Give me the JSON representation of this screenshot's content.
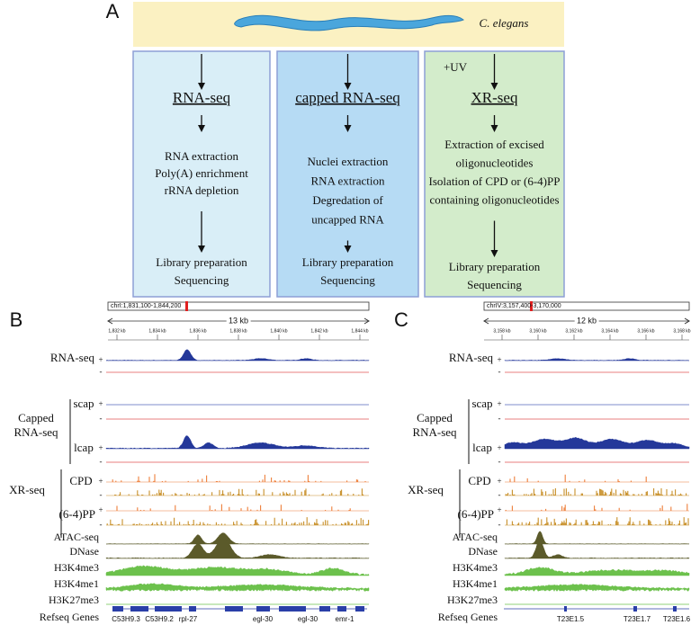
{
  "panel_a": {
    "label": "A",
    "organism": "C. elegans",
    "boxes": [
      {
        "title": "RNA-seq",
        "steps": [
          "RNA extraction",
          "Poly(A) enrichment",
          "rRNA depletion"
        ],
        "final": [
          "Library preparation",
          "Sequencing"
        ]
      },
      {
        "title": "capped RNA-seq",
        "steps": [
          "Nuclei extraction",
          "RNA extraction",
          "Degredation of",
          "uncapped RNA"
        ],
        "final": [
          "Library preparation",
          "Sequencing"
        ]
      },
      {
        "title": "XR-seq",
        "treatment": "+UV",
        "steps": [
          "Extraction of excised",
          "oligonucleotides",
          "Isolation of CPD or (6-4)PP",
          "containing oligonucleotides"
        ],
        "final": [
          "Library preparation",
          "Sequencing"
        ]
      }
    ]
  },
  "strands": [
    "+",
    "-"
  ],
  "track_labels": {
    "rna_seq": "RNA-seq",
    "capped": [
      "Capped",
      "RNA-seq"
    ],
    "scap": "scap",
    "lcap": "lcap",
    "xr_seq": "XR-seq",
    "cpd": "CPD",
    "pp64": "(6-4)PP",
    "atac": "ATAC-seq",
    "dnase": "DNase",
    "h3k4me3": "H3K4me3",
    "h3k4me1": "H3K4me1",
    "h3k27me3": "H3K27me3",
    "genes": "Refseq Genes"
  },
  "panel_b": {
    "label": "B",
    "locus": "chrI:1,831,100-1,844,200",
    "scale": "13 kb",
    "ruler": [
      "1,832 kb",
      "1,834 kb",
      "1,836 kb",
      "1,838 kb",
      "1,840 kb",
      "1,842 kb",
      "1,844 kb"
    ],
    "genes": [
      "C53H9.3",
      "C53H9.2",
      "rpl-27",
      "egl-30",
      "egl-30",
      "emr-1"
    ]
  },
  "panel_c": {
    "label": "C",
    "locus": "chrIV:3,157,400-3,170,000",
    "scale": "12 kb",
    "ruler": [
      "3,158 kb",
      "3,160 kb",
      "3,162 kb",
      "3,164 kb",
      "3,166 kb",
      "3,168 kb"
    ],
    "genes": [
      "T23E1.5",
      "T23E1.7",
      "T23E1.6"
    ]
  }
}
